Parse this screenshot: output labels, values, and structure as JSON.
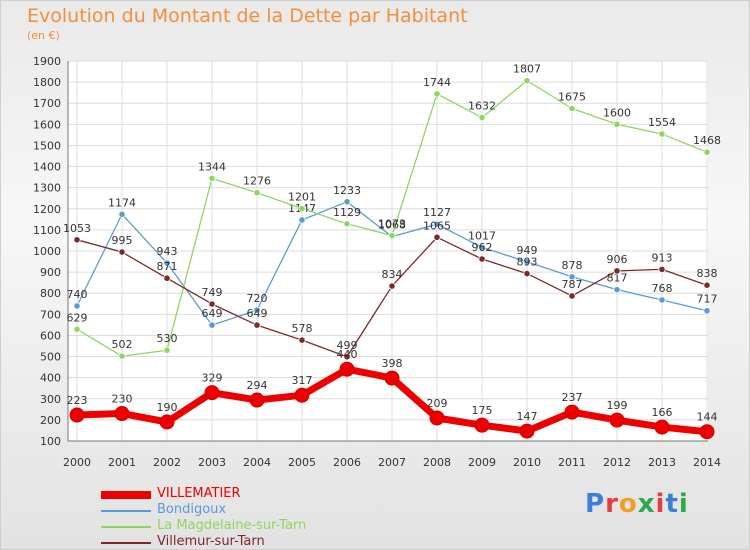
{
  "title": "Evolution du Montant de la Dette par Habitant",
  "unit": "(en €)",
  "logo": {
    "text": "Proxiti"
  },
  "chart_data": {
    "type": "line",
    "x": [
      "2000",
      "2001",
      "2002",
      "2003",
      "2004",
      "2005",
      "2006",
      "2007",
      "2008",
      "2009",
      "2010",
      "2011",
      "2012",
      "2013",
      "2014"
    ],
    "ylim": [
      100,
      1900
    ],
    "yticks": [
      100,
      200,
      300,
      400,
      500,
      600,
      700,
      800,
      900,
      1000,
      1100,
      1200,
      1300,
      1400,
      1500,
      1600,
      1700,
      1800,
      1900
    ],
    "grid": true,
    "legend_position": "bottom-left",
    "series": [
      {
        "name": "VILLEMATIER",
        "color": "#ee0000",
        "values": [
          223,
          230,
          190,
          329,
          294,
          317,
          440,
          398,
          209,
          175,
          147,
          237,
          199,
          166,
          144
        ]
      },
      {
        "name": "Bondigoux",
        "color": "#5b9bd5",
        "values": [
          740,
          1174,
          943,
          649,
          720,
          1147,
          1233,
          1068,
          1127,
          1017,
          949,
          878,
          817,
          768,
          717
        ]
      },
      {
        "name": "La Magdelaine-sur-Tarn",
        "color": "#8fd660",
        "values": [
          629,
          502,
          530,
          1344,
          1276,
          1201,
          1129,
          1073,
          1744,
          1632,
          1807,
          1675,
          1600,
          1554,
          1468
        ]
      },
      {
        "name": "Villemur-sur-Tarn",
        "color": "#7b2a2a",
        "values": [
          1053,
          995,
          871,
          749,
          649,
          578,
          499,
          834,
          1065,
          962,
          893,
          787,
          906,
          913,
          838
        ]
      }
    ]
  }
}
